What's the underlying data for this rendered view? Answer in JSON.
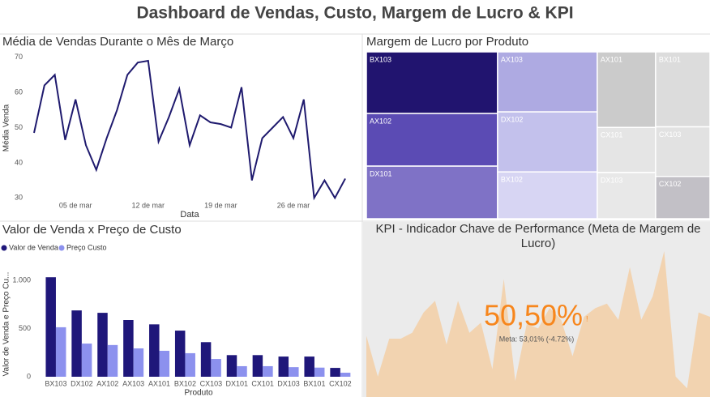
{
  "title": "Dashboard de Vendas, Custo, Margem de Lucro & KPI",
  "chart_data": [
    {
      "type": "line",
      "title": "Média de Vendas Durante o Mês de Março",
      "x_label": "Data",
      "y_label": "Média Venda",
      "x": [
        1,
        2,
        3,
        4,
        5,
        6,
        7,
        8,
        9,
        10,
        11,
        12,
        13,
        14,
        15,
        16,
        17,
        18,
        19,
        20,
        21,
        22,
        23,
        24,
        25,
        26,
        27,
        28,
        29,
        30,
        31
      ],
      "values": [
        48.5,
        62,
        65,
        46.5,
        58,
        45,
        38,
        47,
        55,
        65,
        68.5,
        69,
        46,
        53,
        61,
        45,
        53.5,
        51.5,
        51,
        50,
        61.5,
        35,
        47,
        50,
        53,
        47,
        58,
        30,
        35,
        30,
        35.5
      ],
      "color": "#1f1a6e",
      "xlim": [
        1,
        31
      ],
      "xticks": [
        {
          "value": 5,
          "label": "05 de mar"
        },
        {
          "value": 12,
          "label": "12 de mar"
        },
        {
          "value": 19,
          "label": "19 de mar"
        },
        {
          "value": 26,
          "label": "26 de mar"
        }
      ],
      "ylim": [
        28,
        72
      ],
      "yticks": [
        30,
        40,
        50,
        60,
        70
      ],
      "grid": false
    },
    {
      "type": "treemap",
      "title": "Margem de Lucro por Produto",
      "categories": [
        "BX103",
        "AX102",
        "DX101",
        "AX103",
        "DX102",
        "BX102",
        "AX101",
        "CX101",
        "DX103",
        "BX101",
        "CX103",
        "CX102"
      ],
      "values": [
        12.3,
        10.5,
        10.5,
        9.1,
        9.1,
        7.1,
        6.7,
        4.0,
        4.1,
        6.2,
        4.1,
        3.5
      ],
      "colors": [
        "#21146f",
        "#5b4bb4",
        "#7f72c6",
        "#aeaae2",
        "#c3c1ec",
        "#d7d5f3",
        "#cbcbcb",
        "#e5e5e5",
        "#e8e8e8",
        "#dcdcdc",
        "#e2e2e2",
        "#c2c0c6"
      ]
    },
    {
      "type": "bar",
      "title": "Valor de Venda x Preço de Custo",
      "x_label": "Produto",
      "y_label": "Valor de Venda e Preço Cu...",
      "categories": [
        "BX103",
        "DX102",
        "AX102",
        "AX103",
        "AX101",
        "BX102",
        "CX103",
        "DX101",
        "CX101",
        "DX103",
        "BX101",
        "CX102"
      ],
      "series": [
        {
          "name": "Valor de Venda",
          "color": "#1f177a",
          "values": [
            1035,
            690,
            665,
            590,
            545,
            480,
            360,
            225,
            225,
            210,
            210,
            92
          ]
        },
        {
          "name": "Preço Custo",
          "color": "#8c91ee",
          "values": [
            515,
            345,
            330,
            295,
            270,
            245,
            185,
            110,
            110,
            100,
            95,
            42
          ]
        }
      ],
      "ylim": [
        0,
        1180
      ],
      "yticks": [
        0,
        500,
        {
          "value": 1000,
          "label": "1.000"
        }
      ],
      "grid": false,
      "legend": "top-left"
    },
    {
      "type": "kpi",
      "title": "KPI - Indicador Chave de Performance (Meta de Margem de Lucro)",
      "value": 50.5,
      "value_label": "50,50%",
      "goal_text": "Meta: 53,01% (-4.72%)",
      "alert": "!",
      "color": "#f7861c",
      "trend": {
        "color": "#f2d3b0",
        "values": [
          42,
          14,
          40,
          40,
          44,
          58,
          66,
          36,
          66,
          44,
          51,
          19,
          81,
          11,
          50,
          47,
          61,
          53,
          28,
          55,
          61,
          64,
          53,
          89,
          53,
          69,
          100,
          14,
          6,
          58,
          55
        ]
      }
    }
  ]
}
